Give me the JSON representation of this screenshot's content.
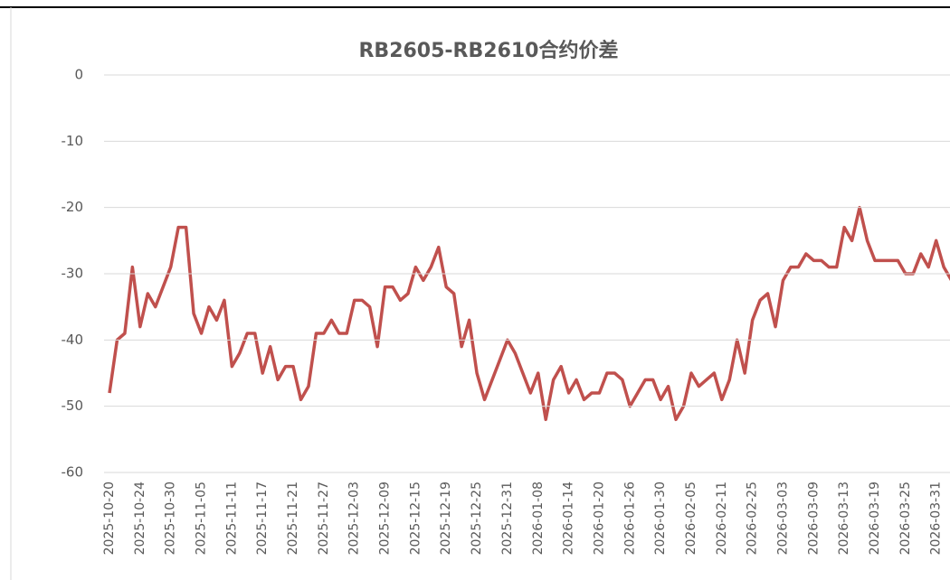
{
  "chart_data": {
    "type": "line",
    "title": "RB2605-RB2610合约价差",
    "categories": [
      "2025-10-20",
      null,
      null,
      null,
      "2025-10-24",
      null,
      null,
      null,
      "2025-10-30",
      null,
      null,
      null,
      "2025-11-05",
      null,
      null,
      null,
      "2025-11-11",
      null,
      null,
      null,
      "2025-11-17",
      null,
      null,
      null,
      "2025-11-21",
      null,
      null,
      null,
      "2025-11-27",
      null,
      null,
      null,
      "2025-12-03",
      null,
      null,
      null,
      "2025-12-09",
      null,
      null,
      null,
      "2025-12-15",
      null,
      null,
      null,
      "2025-12-19",
      null,
      null,
      null,
      "2025-12-25",
      null,
      null,
      null,
      "2025-12-31",
      null,
      null,
      null,
      "2026-01-08",
      null,
      null,
      null,
      "2026-01-14",
      null,
      null,
      null,
      "2026-01-20",
      null,
      null,
      null,
      "2026-01-26",
      null,
      null,
      null,
      "2026-01-30",
      null,
      null,
      null,
      "2026-02-05",
      null,
      null,
      null,
      "2026-02-11",
      null,
      null,
      null,
      "2026-02-25",
      null,
      null,
      null,
      "2026-03-03",
      null,
      null,
      null,
      "2026-03-09",
      null,
      null,
      null,
      "2026-03-13",
      null,
      null,
      null,
      "2026-03-19",
      null,
      null,
      null,
      "2026-03-25",
      null,
      null,
      null,
      "2026-03-31",
      null,
      null
    ],
    "series": [
      {
        "color": "#c0504d",
        "values": [
          -48,
          -40,
          -39,
          -29,
          -38,
          -33,
          -35,
          -32,
          -29,
          -23,
          -23,
          -36,
          -39,
          -35,
          -37,
          -34,
          -44,
          -42,
          -39,
          -39,
          -45,
          -41,
          -46,
          -44,
          -44,
          -49,
          -47,
          -39,
          -39,
          -37,
          -39,
          -39,
          -34,
          -34,
          -35,
          -41,
          -32,
          -32,
          -34,
          -33,
          -29,
          -31,
          -29,
          -26,
          -32,
          -33,
          -41,
          -37,
          -45,
          -49,
          -46,
          -43,
          -40,
          -42,
          -45,
          -48,
          -45,
          -52,
          -46,
          -44,
          -48,
          -46,
          -49,
          -48,
          -48,
          -45,
          -45,
          -46,
          -50,
          -48,
          -46,
          -46,
          -49,
          -47,
          -52,
          -50,
          -45,
          -47,
          -46,
          -45,
          -49,
          -46,
          -40,
          -45,
          -37,
          -34,
          -33,
          -38,
          -31,
          -29,
          -29,
          -27,
          -28,
          -28,
          -29,
          -29,
          -23,
          -25,
          -20,
          -25,
          -28,
          -28,
          -28,
          -28,
          -30,
          -30,
          -27,
          -29,
          -25,
          -29,
          -31
        ]
      }
    ],
    "ylim": [
      -60,
      0
    ],
    "yticks": [
      0,
      -10,
      -20,
      -30,
      -40,
      -50,
      -60
    ],
    "grid": true
  }
}
